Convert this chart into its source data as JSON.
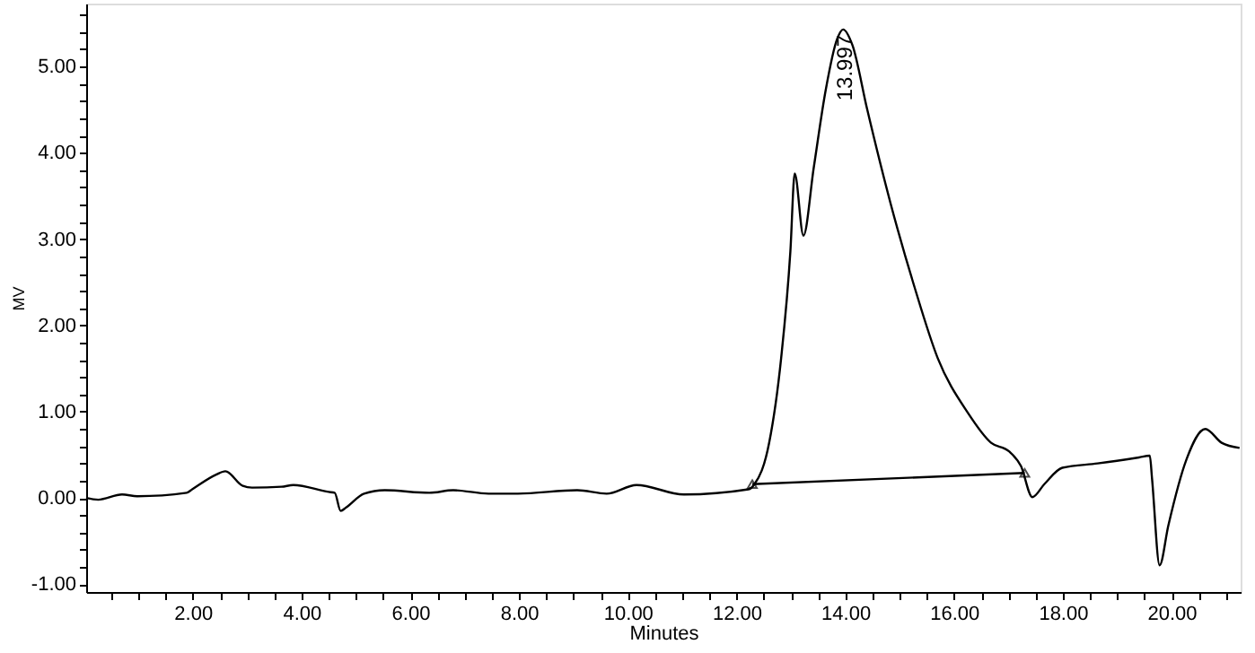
{
  "chart_data": {
    "type": "line",
    "xlabel": "Minutes",
    "ylabel": "MV",
    "xlim": [
      0.04,
      21.27
    ],
    "ylim": [
      -1.09,
      5.73
    ],
    "xticks": [
      {
        "value": 0.5,
        "label": null
      },
      {
        "value": 1,
        "label": null
      },
      {
        "value": 1.5,
        "label": null
      },
      {
        "value": 2,
        "label": "2.00"
      },
      {
        "value": 2.5,
        "label": null
      },
      {
        "value": 3,
        "label": null
      },
      {
        "value": 3.5,
        "label": null
      },
      {
        "value": 4,
        "label": "4.00"
      },
      {
        "value": 4.5,
        "label": null
      },
      {
        "value": 5,
        "label": null
      },
      {
        "value": 5.5,
        "label": null
      },
      {
        "value": 6,
        "label": "6.00"
      },
      {
        "value": 6.5,
        "label": null
      },
      {
        "value": 7,
        "label": null
      },
      {
        "value": 7.5,
        "label": null
      },
      {
        "value": 8,
        "label": "8.00"
      },
      {
        "value": 8.5,
        "label": null
      },
      {
        "value": 9,
        "label": null
      },
      {
        "value": 9.5,
        "label": null
      },
      {
        "value": 10,
        "label": "10.00"
      },
      {
        "value": 10.5,
        "label": null
      },
      {
        "value": 11,
        "label": null
      },
      {
        "value": 11.5,
        "label": null
      },
      {
        "value": 12,
        "label": "12.00"
      },
      {
        "value": 12.5,
        "label": null
      },
      {
        "value": 13,
        "label": null
      },
      {
        "value": 13.5,
        "label": null
      },
      {
        "value": 14,
        "label": "14.00"
      },
      {
        "value": 14.5,
        "label": null
      },
      {
        "value": 15,
        "label": null
      },
      {
        "value": 15.5,
        "label": null
      },
      {
        "value": 16,
        "label": "16.00"
      },
      {
        "value": 16.5,
        "label": null
      },
      {
        "value": 17,
        "label": null
      },
      {
        "value": 17.5,
        "label": null
      },
      {
        "value": 18,
        "label": "18.00"
      },
      {
        "value": 18.5,
        "label": null
      },
      {
        "value": 19,
        "label": null
      },
      {
        "value": 19.5,
        "label": null
      },
      {
        "value": 20,
        "label": "20.00"
      },
      {
        "value": 20.5,
        "label": null
      },
      {
        "value": 21,
        "label": null
      }
    ],
    "yticks": [
      {
        "value": -1,
        "label": "-1.00"
      },
      {
        "value": -0.8,
        "label": null
      },
      {
        "value": -0.6,
        "label": null
      },
      {
        "value": -0.4,
        "label": null
      },
      {
        "value": -0.2,
        "label": null
      },
      {
        "value": 0,
        "label": "0.00"
      },
      {
        "value": 0.2,
        "label": null
      },
      {
        "value": 0.4,
        "label": null
      },
      {
        "value": 0.6,
        "label": null
      },
      {
        "value": 0.8,
        "label": null
      },
      {
        "value": 1,
        "label": "1.00"
      },
      {
        "value": 1.2,
        "label": null
      },
      {
        "value": 1.4,
        "label": null
      },
      {
        "value": 1.6,
        "label": null
      },
      {
        "value": 1.8,
        "label": null
      },
      {
        "value": 2,
        "label": "2.00"
      },
      {
        "value": 2.2,
        "label": null
      },
      {
        "value": 2.4,
        "label": null
      },
      {
        "value": 2.6,
        "label": null
      },
      {
        "value": 2.8,
        "label": null
      },
      {
        "value": 3,
        "label": "3.00"
      },
      {
        "value": 3.2,
        "label": null
      },
      {
        "value": 3.4,
        "label": null
      },
      {
        "value": 3.6,
        "label": null
      },
      {
        "value": 3.8,
        "label": null
      },
      {
        "value": 4,
        "label": "4.00"
      },
      {
        "value": 4.2,
        "label": null
      },
      {
        "value": 4.4,
        "label": null
      },
      {
        "value": 4.6,
        "label": null
      },
      {
        "value": 4.8,
        "label": null
      },
      {
        "value": 5,
        "label": "5.00"
      },
      {
        "value": 5.2,
        "label": null
      },
      {
        "value": 5.4,
        "label": null
      },
      {
        "value": 5.6,
        "label": null
      }
    ],
    "grid": false,
    "series": [
      {
        "type": "line",
        "color": "#000000",
        "line_style": "solid",
        "x": [
          0.04,
          0.26,
          0.7,
          0.98,
          1.89,
          1.99,
          2.43,
          2.6,
          2.92,
          3.09,
          3.63,
          3.85,
          4.5,
          4.61,
          4.72,
          4.82,
          5.15,
          5.53,
          6.35,
          6.79,
          7.44,
          7.98,
          9.07,
          9.61,
          10.16,
          11.03,
          12.22,
          12.33,
          12.6,
          12.82,
          12.99,
          13.07,
          13.23,
          13.42,
          13.64,
          13.85,
          13.96,
          14.13,
          14.4,
          14.83,
          15.27,
          15.7,
          16.25,
          16.68,
          17.01,
          17.23,
          17.44,
          17.66,
          17.99,
          18.64,
          19.4,
          19.6,
          19.64,
          19.78,
          19.94,
          20.27,
          20.62,
          20.92,
          21.25
        ],
        "values": [
          0.0,
          -0.02,
          0.04,
          0.02,
          0.06,
          0.1,
          0.27,
          0.31,
          0.14,
          0.12,
          0.13,
          0.15,
          0.07,
          0.06,
          -0.15,
          -0.11,
          0.05,
          0.09,
          0.06,
          0.09,
          0.05,
          0.05,
          0.09,
          0.05,
          0.15,
          0.04,
          0.1,
          0.16,
          0.64,
          1.62,
          2.86,
          3.76,
          3.04,
          3.83,
          4.73,
          5.32,
          5.43,
          5.25,
          4.51,
          3.42,
          2.45,
          1.62,
          0.99,
          0.64,
          0.54,
          0.37,
          0.01,
          0.16,
          0.35,
          0.4,
          0.47,
          0.49,
          0.23,
          -0.78,
          -0.32,
          0.44,
          0.8,
          0.64,
          0.58
        ]
      },
      {
        "type": "line",
        "color": "#000000",
        "line_style": "solid",
        "marker": "triangle",
        "x": [
          12.29,
          17.3
        ],
        "values": [
          0.16,
          0.29
        ]
      }
    ],
    "annotations": [
      {
        "text": "13.997",
        "x": 13.997,
        "y": 5.43
      }
    ]
  }
}
